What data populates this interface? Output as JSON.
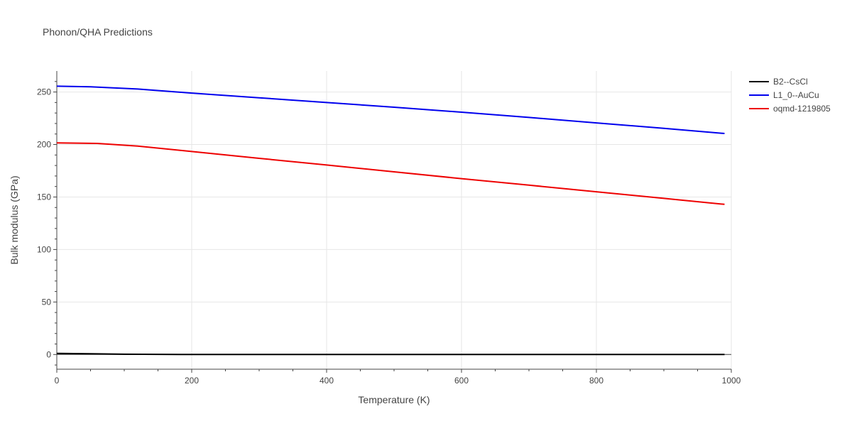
{
  "chart_data": {
    "type": "line",
    "title": "Phonon/QHA Predictions",
    "xlabel": "Temperature (K)",
    "ylabel": "Bulk modulus (GPa)",
    "xlim": [
      0,
      1000
    ],
    "ylim": [
      -14,
      270
    ],
    "xticks": [
      0,
      200,
      400,
      600,
      800,
      1000
    ],
    "yticks": [
      0,
      50,
      100,
      150,
      200,
      250
    ],
    "grid": true,
    "legend_position": "top-right",
    "series": [
      {
        "name": "B2--CsCl",
        "color": "#000000",
        "x": [
          0,
          50,
          100,
          200,
          300,
          400,
          500,
          600,
          700,
          800,
          900,
          990
        ],
        "y": [
          1.0,
          0.7,
          0.3,
          0,
          0,
          0,
          0,
          0,
          0,
          0,
          0,
          0
        ]
      },
      {
        "name": "L1_0--AuCu",
        "color": "#0000ee",
        "x": [
          0,
          50,
          120,
          200,
          300,
          400,
          500,
          600,
          700,
          800,
          900,
          990
        ],
        "y": [
          255.5,
          255,
          252.8,
          249,
          244.5,
          240,
          235.5,
          230.8,
          225.8,
          220.6,
          215.4,
          210.5
        ]
      },
      {
        "name": "oqmd-1219805",
        "color": "#ee0000",
        "x": [
          0,
          60,
          120,
          200,
          300,
          400,
          500,
          600,
          700,
          800,
          900,
          990
        ],
        "y": [
          201.5,
          201,
          198.5,
          193.3,
          186.8,
          180.5,
          174,
          167.5,
          161.3,
          155,
          148.7,
          143
        ]
      }
    ]
  }
}
